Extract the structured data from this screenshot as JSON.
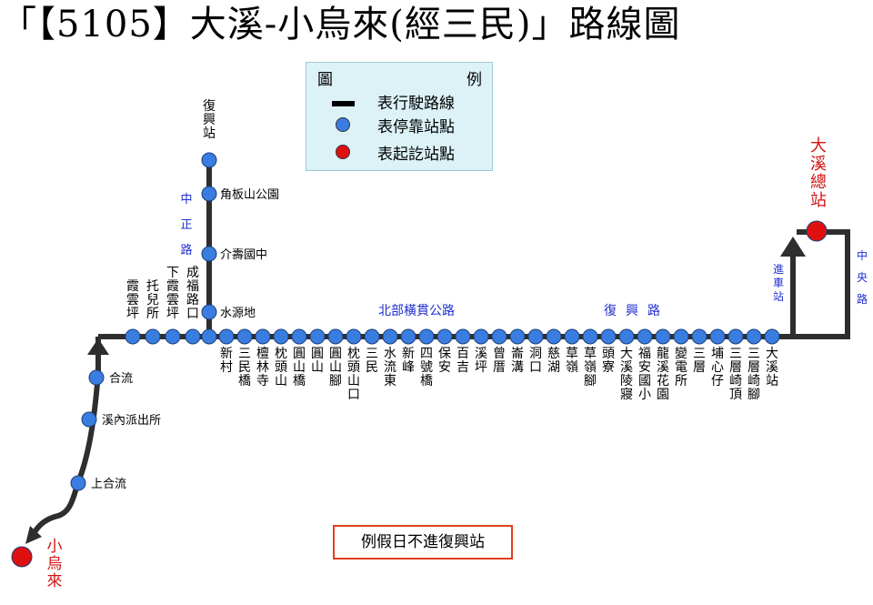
{
  "title": "「【5105】大溪-小烏來(經三民)」路線圖",
  "legend": {
    "title_left": "圖",
    "title_right": "例",
    "items": [
      {
        "symbol": "line",
        "label": "表行駛路線",
        "color": "#000000"
      },
      {
        "symbol": "blue-dot",
        "label": "表停靠站點",
        "color": "#3a7de0"
      },
      {
        "symbol": "red-dot",
        "label": "表起訖站點",
        "color": "#e01010"
      }
    ]
  },
  "notice": "例假日不進復興站",
  "terminals": {
    "start": "大溪總站",
    "end": "小烏來"
  },
  "road_labels": {
    "zhongzheng": "中正路",
    "north_cross_island": "北部橫貫公路",
    "fuxing_road": "復興路",
    "zhongyang": "中央路",
    "entering": "進車站"
  },
  "stations": {
    "fuxing_branch": [
      "復興站",
      "角板山公園",
      "介壽國中",
      "水源地"
    ],
    "left_branch": [
      "霞雲坪",
      "托兒所",
      "下霞雲坪",
      "成福路口"
    ],
    "southwest": [
      "合流",
      "溪內派出所",
      "上合流"
    ],
    "main_line": [
      "新村",
      "三民橋",
      "檀林寺",
      "枕頭山",
      "圓山橋",
      "圓山",
      "圓山腳",
      "枕頭山口",
      "三民",
      "水流東",
      "新峰",
      "四號橋",
      "保安",
      "百吉",
      "溪坪",
      "曾厝",
      "崙溝",
      "洞口",
      "慈湖",
      "草嶺",
      "草嶺腳",
      "頭寮",
      "大溪陵寢",
      "福安國小",
      "龍溪花園",
      "變電所",
      "三層",
      "埔心仔",
      "三層崎頂",
      "三層崎腳",
      "大溪站"
    ]
  },
  "colors": {
    "route": "#2e2e2e",
    "stop": "#3a7de0",
    "terminal": "#e01010",
    "terminal_text": "#d11212",
    "road_text": "#1f2fd0",
    "legend_bg": "#dcf2f7",
    "notice_border": "#e0401c"
  }
}
